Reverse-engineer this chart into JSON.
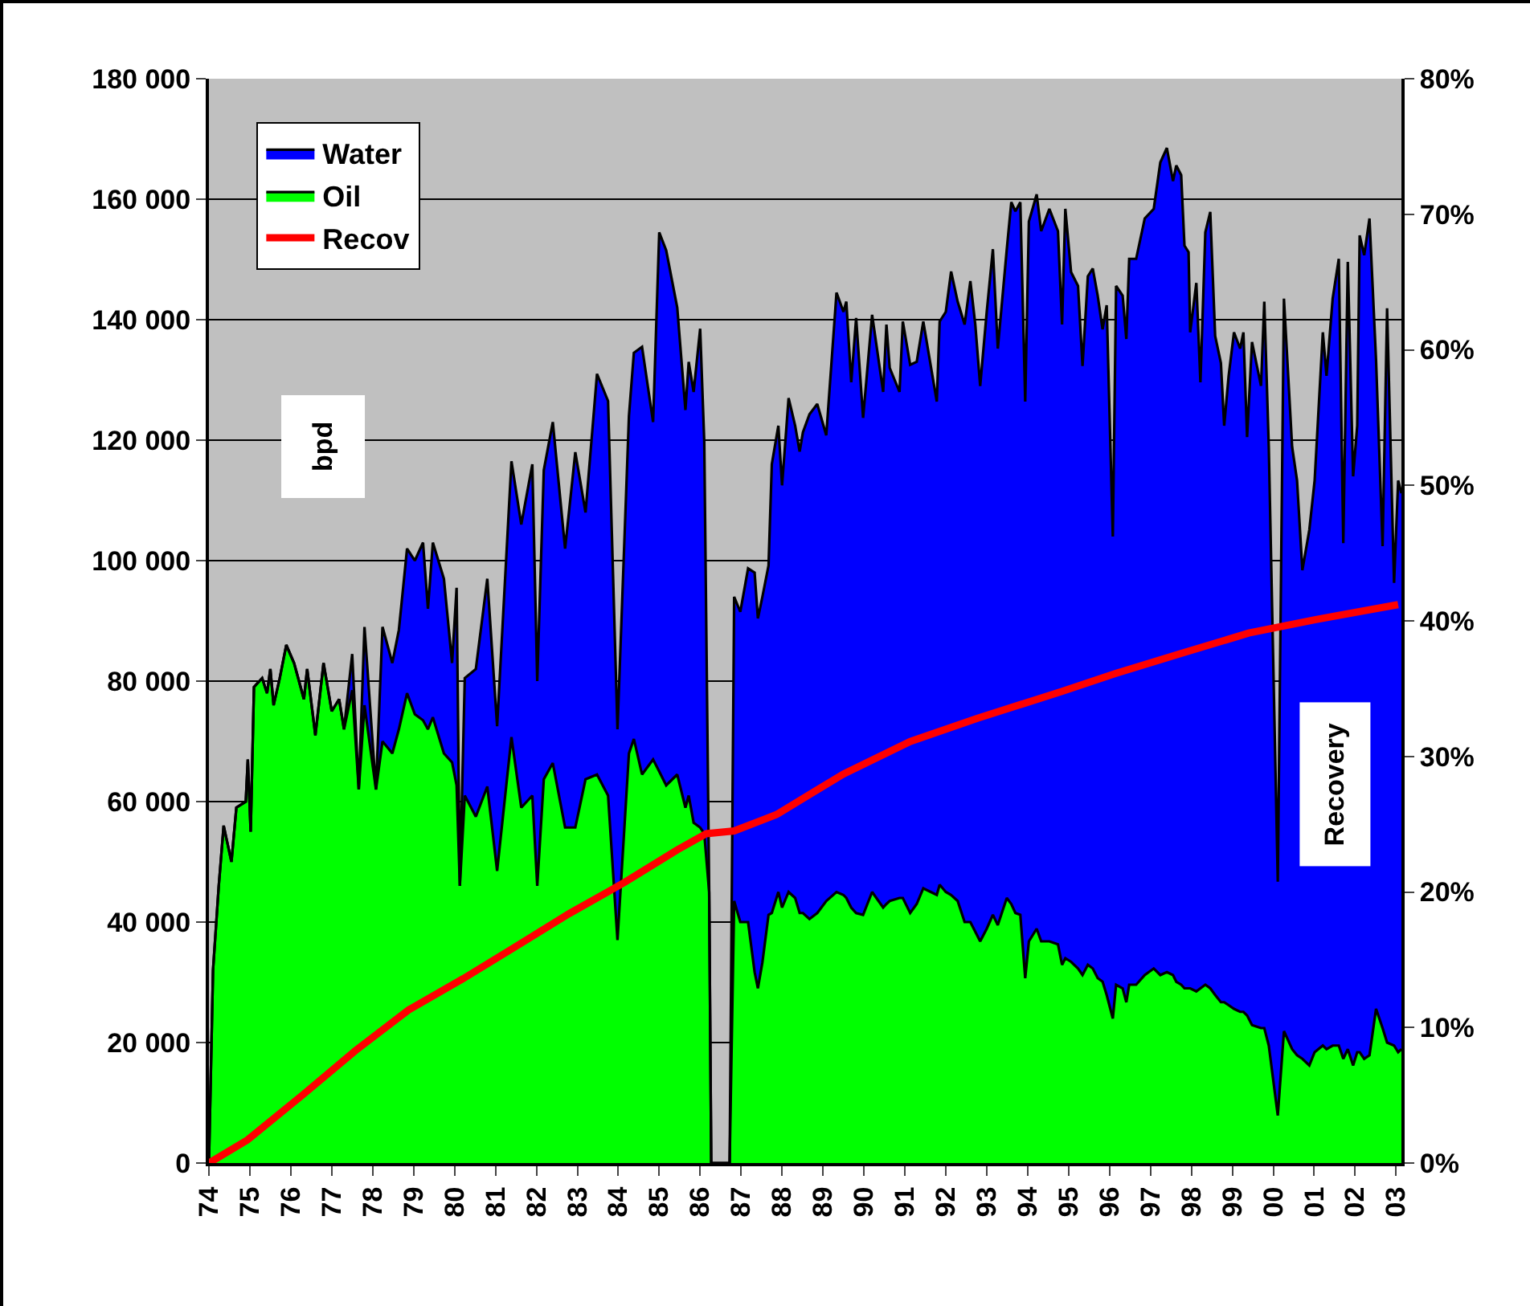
{
  "chart_data": {
    "type": "area",
    "stacked": true,
    "ylabel": "bpd",
    "y2label": "Recovery",
    "legend": "top left",
    "grid": "y",
    "marker": "none",
    "x": [
      1974.0,
      1974.1,
      1974.24,
      1974.36,
      1974.55,
      1974.67,
      1974.9,
      1974.95,
      1975.02,
      1975.1,
      1975.3,
      1975.42,
      1975.5,
      1975.58,
      1975.73,
      1975.89,
      1976.08,
      1976.32,
      1976.4,
      1976.6,
      1976.8,
      1977.0,
      1977.18,
      1977.3,
      1977.5,
      1977.66,
      1977.8,
      1978.08,
      1978.24,
      1978.48,
      1978.64,
      1978.84,
      1979.03,
      1979.23,
      1979.35,
      1979.47,
      1979.74,
      1979.94,
      1980.05,
      1980.13,
      1980.25,
      1980.52,
      1980.8,
      1981.04,
      1981.39,
      1981.63,
      1981.9,
      1982.02,
      1982.18,
      1982.4,
      1982.7,
      1982.95,
      1983.2,
      1983.48,
      1983.75,
      1983.98,
      1984.26,
      1984.38,
      1984.58,
      1984.85,
      1985.0,
      1985.17,
      1985.44,
      1985.64,
      1985.72,
      1985.84,
      1986.0,
      1986.1,
      1986.22,
      1986.27,
      1986.72,
      1986.83,
      1986.98,
      1987.17,
      1987.33,
      1987.41,
      1987.52,
      1987.67,
      1987.75,
      1987.91,
      1988.0,
      1988.16,
      1988.32,
      1988.43,
      1988.51,
      1988.67,
      1988.86,
      1989.08,
      1989.33,
      1989.5,
      1989.57,
      1989.69,
      1989.81,
      1989.98,
      1990.2,
      1990.47,
      1990.55,
      1990.63,
      1990.87,
      1990.95,
      1991.13,
      1991.29,
      1991.45,
      1991.78,
      1991.85,
      1992.0,
      1992.13,
      1992.29,
      1992.46,
      1992.6,
      1992.72,
      1992.84,
      1993.0,
      1993.15,
      1993.27,
      1993.49,
      1993.6,
      1993.7,
      1993.82,
      1993.94,
      1994.03,
      1994.22,
      1994.33,
      1994.53,
      1994.74,
      1994.84,
      1994.92,
      1995.06,
      1995.23,
      1995.34,
      1995.47,
      1995.59,
      1995.71,
      1995.83,
      1995.93,
      1996.08,
      1996.16,
      1996.32,
      1996.41,
      1996.48,
      1996.65,
      1996.86,
      1997.08,
      1997.24,
      1997.4,
      1997.55,
      1997.63,
      1997.75,
      1997.83,
      1997.93,
      1997.97,
      1998.12,
      1998.22,
      1998.34,
      1998.46,
      1998.58,
      1998.72,
      1998.8,
      1998.91,
      1999.04,
      1999.19,
      1999.27,
      1999.36,
      1999.48,
      1999.7,
      1999.78,
      1999.89,
      2000.11,
      2000.26,
      2000.46,
      2000.58,
      2000.71,
      2000.88,
      2001.01,
      2001.21,
      2001.3,
      2001.45,
      2001.6,
      2001.71,
      2001.82,
      2001.95,
      2002.05,
      2002.11,
      2002.22,
      2002.35,
      2002.51,
      2002.67,
      2002.78,
      2002.95,
      2003.05,
      2003.13
    ],
    "series": [
      {
        "name": "Oil",
        "color": "#00ff00",
        "values": [
          0,
          32000,
          46000,
          56000,
          50000,
          59000,
          60000,
          67000,
          55000,
          79000,
          80500,
          78000,
          82000,
          76000,
          80500,
          86000,
          83000,
          77000,
          82000,
          71000,
          83000,
          75000,
          77000,
          72000,
          78500,
          62000,
          76000,
          62000,
          70000,
          68000,
          72000,
          78000,
          74500,
          73500,
          72000,
          74000,
          68000,
          66500,
          62700,
          46000,
          61000,
          57500,
          62500,
          48500,
          70700,
          59000,
          61000,
          46000,
          63700,
          66400,
          55700,
          55700,
          63700,
          64500,
          61000,
          37000,
          68000,
          70400,
          64500,
          67000,
          65000,
          62700,
          64500,
          59000,
          61000,
          56500,
          55700,
          54700,
          45000,
          0,
          0,
          43500,
          40000,
          40000,
          31700,
          29000,
          33300,
          41200,
          41500,
          45000,
          42400,
          45000,
          44000,
          41500,
          41500,
          40500,
          41500,
          43500,
          45000,
          44500,
          44000,
          42400,
          41500,
          41200,
          45000,
          42400,
          43000,
          43500,
          44000,
          44000,
          41500,
          43000,
          45600,
          44500,
          46200,
          45000,
          44500,
          43500,
          40000,
          40000,
          38400,
          36800,
          38900,
          41200,
          39500,
          44000,
          43000,
          41500,
          41200,
          30700,
          36800,
          38900,
          36800,
          36800,
          36300,
          32900,
          34000,
          33400,
          32300,
          31200,
          32900,
          32300,
          30700,
          30100,
          27900,
          24000,
          29600,
          29000,
          26700,
          29600,
          29600,
          31200,
          32300,
          31200,
          31700,
          31200,
          30100,
          29600,
          29000,
          29000,
          29000,
          28500,
          29000,
          29600,
          29000,
          27900,
          26700,
          26700,
          26200,
          25600,
          25100,
          25100,
          24500,
          22900,
          22400,
          22400,
          19500,
          7900,
          21900,
          18900,
          17900,
          17300,
          16200,
          18400,
          19500,
          18900,
          19500,
          19500,
          17300,
          18900,
          16200,
          18400,
          18400,
          17300,
          17900,
          25600,
          22400,
          20000,
          19500,
          18400,
          18900
        ]
      },
      {
        "name": "Water",
        "color": "#0000ff",
        "values": [
          0,
          0,
          0,
          0,
          0,
          0,
          0,
          0,
          0,
          0,
          0,
          0,
          0,
          0,
          0,
          0,
          0,
          0,
          0,
          0,
          0,
          0,
          0,
          0,
          6000,
          0,
          13000,
          0,
          19000,
          15000,
          16500,
          24000,
          25500,
          29500,
          20000,
          29000,
          29000,
          16500,
          32800,
          0,
          19500,
          24500,
          34500,
          24000,
          45800,
          47000,
          55000,
          34000,
          51300,
          56600,
          46300,
          62300,
          44300,
          66500,
          65500,
          35000,
          56000,
          64100,
          71000,
          56000,
          89500,
          88800,
          77500,
          66000,
          72000,
          71500,
          82800,
          65000,
          0,
          0,
          0,
          50500,
          51500,
          58700,
          66300,
          61400,
          60700,
          58000,
          74500,
          77400,
          70100,
          82000,
          78400,
          76600,
          79800,
          83800,
          84500,
          77300,
          99500,
          96800,
          99000,
          87200,
          98800,
          82500,
          95800,
          85600,
          96200,
          88500,
          84000,
          95700,
          91000,
          90000,
          94100,
          81900,
          93500,
          96300,
          103500,
          99500,
          99200,
          106400,
          100800,
          92200,
          102400,
          110500,
          95700,
          107700,
          116500,
          116500,
          118300,
          95700,
          119500,
          121900,
          117900,
          121600,
          118400,
          106300,
          124400,
          114500,
          113300,
          101100,
          114300,
          116200,
          113300,
          108300,
          114500,
          80000,
          116000,
          115000,
          110100,
          120500,
          120500,
          125600,
          126100,
          134900,
          136800,
          131800,
          135500,
          134400,
          123300,
          122200,
          108900,
          117600,
          100600,
          124900,
          128900,
          109400,
          106100,
          95700,
          104500,
          112300,
          110100,
          112800,
          96000,
          113400,
          106600,
          120600,
          99400,
          38800,
          121600,
          100000,
          95400,
          81100,
          88900,
          94900,
          118400,
          111800,
          124000,
          130600,
          85600,
          130700,
          97800,
          104000,
          135600,
          133400,
          138900,
          107700,
          80000,
          121900,
          76800,
          94900,
          92300
        ]
      },
      {
        "name": "Recov",
        "type": "line",
        "axis": "y2",
        "color": "#ff0000",
        "line_style": "solid",
        "x": [
          1974.0,
          1974.94,
          1976.28,
          1977.58,
          1978.88,
          1980.21,
          1981.51,
          1982.8,
          1984.15,
          1985.44,
          1986.15,
          1986.83,
          1987.86,
          1989.5,
          1991.13,
          1992.76,
          1994.84,
          1996.13,
          1997.75,
          1999.4,
          2001.04,
          2003.05
        ],
        "values": [
          0,
          1.7,
          5.0,
          8.3,
          11.3,
          13.6,
          16.0,
          18.4,
          20.7,
          23.1,
          24.3,
          24.5,
          25.7,
          28.7,
          31.1,
          32.8,
          34.8,
          36.1,
          37.6,
          39.1,
          40.1,
          41.2
        ]
      }
    ],
    "xlim": [
      1974,
      2003.13
    ],
    "xticks": [
      {
        "value": 1974,
        "label": "74"
      },
      {
        "value": 1975,
        "label": "75"
      },
      {
        "value": 1976,
        "label": "76"
      },
      {
        "value": 1977,
        "label": "77"
      },
      {
        "value": 1978,
        "label": "78"
      },
      {
        "value": 1979,
        "label": "79"
      },
      {
        "value": 1980,
        "label": "80"
      },
      {
        "value": 1981,
        "label": "81"
      },
      {
        "value": 1982,
        "label": "82"
      },
      {
        "value": 1983,
        "label": "83"
      },
      {
        "value": 1984,
        "label": "84"
      },
      {
        "value": 1985,
        "label": "85"
      },
      {
        "value": 1986,
        "label": "86"
      },
      {
        "value": 1987,
        "label": "87"
      },
      {
        "value": 1988,
        "label": "88"
      },
      {
        "value": 1989,
        "label": "89"
      },
      {
        "value": 1990,
        "label": "90"
      },
      {
        "value": 1991,
        "label": "91"
      },
      {
        "value": 1992,
        "label": "92"
      },
      {
        "value": 1993,
        "label": "93"
      },
      {
        "value": 1994,
        "label": "94"
      },
      {
        "value": 1995,
        "label": "95"
      },
      {
        "value": 1996,
        "label": "96"
      },
      {
        "value": 1997,
        "label": "97"
      },
      {
        "value": 1998,
        "label": "98"
      },
      {
        "value": 1999,
        "label": "99"
      },
      {
        "value": 2000,
        "label": "00"
      },
      {
        "value": 2001,
        "label": "01"
      },
      {
        "value": 2002,
        "label": "02"
      },
      {
        "value": 2003,
        "label": "03"
      }
    ],
    "ylim": [
      0,
      180000
    ],
    "yticks": [
      {
        "value": 0,
        "label": "0"
      },
      {
        "value": 20000,
        "label": "20 000"
      },
      {
        "value": 40000,
        "label": "40 000"
      },
      {
        "value": 60000,
        "label": "60 000"
      },
      {
        "value": 80000,
        "label": "80 000"
      },
      {
        "value": 100000,
        "label": "100 000"
      },
      {
        "value": 120000,
        "label": "120 000"
      },
      {
        "value": 140000,
        "label": "140 000"
      },
      {
        "value": 160000,
        "label": "160 000"
      },
      {
        "value": 180000,
        "label": "180 000"
      }
    ],
    "y2lim": [
      0,
      80
    ],
    "y2ticks": [
      {
        "value": 0,
        "label": "0%"
      },
      {
        "value": 10,
        "label": "10%"
      },
      {
        "value": 20,
        "label": "20%"
      },
      {
        "value": 30,
        "label": "30%"
      },
      {
        "value": 40,
        "label": "40%"
      },
      {
        "value": 50,
        "label": "50%"
      },
      {
        "value": 60,
        "label": "60%"
      },
      {
        "value": 70,
        "label": "70%"
      },
      {
        "value": 80,
        "label": "80%"
      }
    ]
  }
}
